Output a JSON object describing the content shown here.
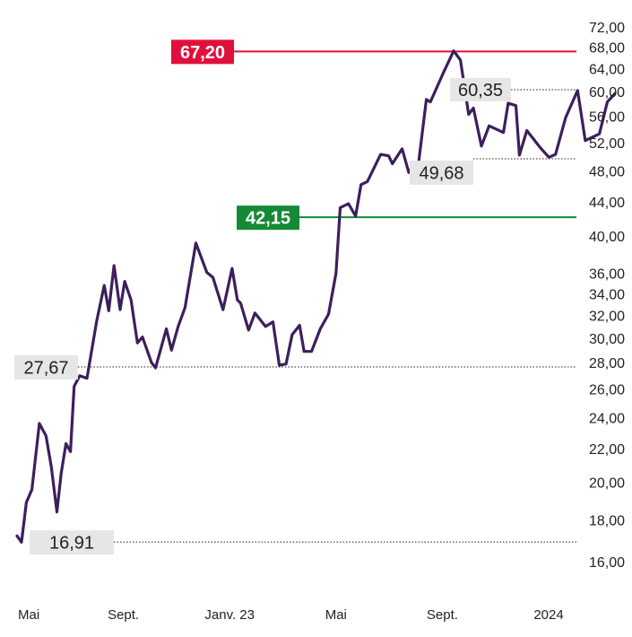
{
  "chart_data": {
    "type": "line",
    "scale": "log",
    "ylim": [
      15.5,
      74
    ],
    "y_ticks": [
      "72,00",
      "68,00",
      "64,00",
      "60,00",
      "56,00",
      "52,00",
      "48,00",
      "44,00",
      "40,00",
      "36,00",
      "34,00",
      "32,00",
      "30,00",
      "28,00",
      "26,00",
      "24,00",
      "22,00",
      "20,00",
      "18,00",
      "16,00"
    ],
    "x_ticks": [
      {
        "label": "Mai",
        "x": 0
      },
      {
        "label": "Sept.",
        "x": 4
      },
      {
        "label": "Janv. 23",
        "x": 8
      },
      {
        "label": "Mai",
        "x": 12
      },
      {
        "label": "Sept.",
        "x": 16
      },
      {
        "label": "2024",
        "x": 20
      }
    ],
    "series": [
      {
        "color": "#3d1f5c",
        "points": [
          [
            0.0,
            17.2
          ],
          [
            0.17,
            16.9
          ],
          [
            0.35,
            18.9
          ],
          [
            0.56,
            19.6
          ],
          [
            0.84,
            23.6
          ],
          [
            1.09,
            22.8
          ],
          [
            1.29,
            20.9
          ],
          [
            1.5,
            18.4
          ],
          [
            1.66,
            20.5
          ],
          [
            1.84,
            22.3
          ],
          [
            2.01,
            21.8
          ],
          [
            2.15,
            26.2
          ],
          [
            2.36,
            27.0
          ],
          [
            2.63,
            26.8
          ],
          [
            3.0,
            31.5
          ],
          [
            3.28,
            34.8
          ],
          [
            3.45,
            32.4
          ],
          [
            3.65,
            36.8
          ],
          [
            3.88,
            32.5
          ],
          [
            4.05,
            35.2
          ],
          [
            4.29,
            33.4
          ],
          [
            4.53,
            29.6
          ],
          [
            4.72,
            30.1
          ],
          [
            5.06,
            28.0
          ],
          [
            5.21,
            27.6
          ],
          [
            5.62,
            30.8
          ],
          [
            5.81,
            29.0
          ],
          [
            6.06,
            31.0
          ],
          [
            6.32,
            32.7
          ],
          [
            6.73,
            39.2
          ],
          [
            7.14,
            36.1
          ],
          [
            7.37,
            35.6
          ],
          [
            7.75,
            32.5
          ],
          [
            8.09,
            36.5
          ],
          [
            8.29,
            33.4
          ],
          [
            8.41,
            33.1
          ],
          [
            8.71,
            30.7
          ],
          [
            8.95,
            32.2
          ],
          [
            9.35,
            31.0
          ],
          [
            9.63,
            31.4
          ],
          [
            9.87,
            27.8
          ],
          [
            10.12,
            27.9
          ],
          [
            10.35,
            30.3
          ],
          [
            10.63,
            31.1
          ],
          [
            10.8,
            28.9
          ],
          [
            11.08,
            28.9
          ],
          [
            11.41,
            30.8
          ],
          [
            11.72,
            32.1
          ],
          [
            12.0,
            36.0
          ],
          [
            12.16,
            43.3
          ],
          [
            12.47,
            43.8
          ],
          [
            12.74,
            42.3
          ],
          [
            12.94,
            46.2
          ],
          [
            13.18,
            46.6
          ],
          [
            13.68,
            50.3
          ],
          [
            13.98,
            50.1
          ],
          [
            14.12,
            49.0
          ],
          [
            14.49,
            51.1
          ],
          [
            14.74,
            47.8
          ],
          [
            14.89,
            48.7
          ],
          [
            15.06,
            47.7
          ],
          [
            15.4,
            58.7
          ],
          [
            15.55,
            58.3
          ],
          [
            16.05,
            63.4
          ],
          [
            16.43,
            67.3
          ],
          [
            16.68,
            65.6
          ],
          [
            16.99,
            56.3
          ],
          [
            17.17,
            57.3
          ],
          [
            17.47,
            51.5
          ],
          [
            17.76,
            54.5
          ],
          [
            18.3,
            53.5
          ],
          [
            18.48,
            58.1
          ],
          [
            18.77,
            57.7
          ],
          [
            18.9,
            50.2
          ],
          [
            19.18,
            53.8
          ],
          [
            19.7,
            51.2
          ],
          [
            20.01,
            49.9
          ],
          [
            20.26,
            50.3
          ],
          [
            20.64,
            55.8
          ],
          [
            21.09,
            60.2
          ],
          [
            21.38,
            52.3
          ],
          [
            21.91,
            53.3
          ],
          [
            22.21,
            58.3
          ],
          [
            22.5,
            59.7
          ]
        ]
      }
    ],
    "reference_lines": [
      {
        "value": 67.2,
        "label": "67,20",
        "style": "solid",
        "color": "#e0103d",
        "label_bg": "#e0103d",
        "label_color": "#ffffff"
      },
      {
        "value": 42.15,
        "label": "42,15",
        "style": "solid",
        "color": "#148a36",
        "label_bg": "#148a36",
        "label_color": "#ffffff"
      },
      {
        "value": 27.67,
        "label": "27,67",
        "style": "dotted",
        "color": "#222222",
        "label_bg": "#e6e6e6",
        "label_color": "#222222"
      },
      {
        "value": 16.91,
        "label": "16,91",
        "style": "dotted",
        "color": "#222222",
        "label_bg": "#e6e6e6",
        "label_color": "#222222"
      },
      {
        "value": 60.35,
        "label": "60,35",
        "style": "dotted",
        "color": "#222222",
        "label_bg": "#e6e6e6",
        "label_color": "#222222"
      },
      {
        "value": 49.68,
        "label": "49,68",
        "style": "dotted",
        "color": "#222222",
        "label_bg": "#e6e6e6",
        "label_color": "#222222"
      }
    ],
    "grid": false
  }
}
